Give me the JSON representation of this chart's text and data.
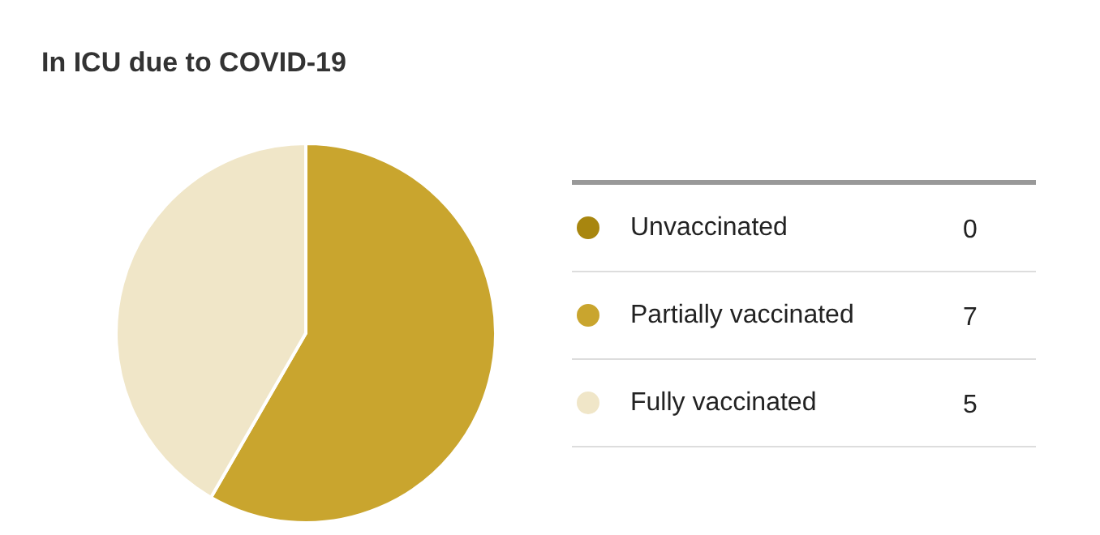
{
  "chart_data": {
    "type": "pie",
    "title": "In ICU due to COVID-19",
    "categories": [
      "Unvaccinated",
      "Partially vaccinated",
      "Fully vaccinated"
    ],
    "values": [
      0,
      7,
      5
    ],
    "colors": [
      "#a8860f",
      "#c9a52e",
      "#f0e6c8"
    ],
    "value_labels": [
      "0",
      "7",
      "5"
    ],
    "legend": "right"
  }
}
